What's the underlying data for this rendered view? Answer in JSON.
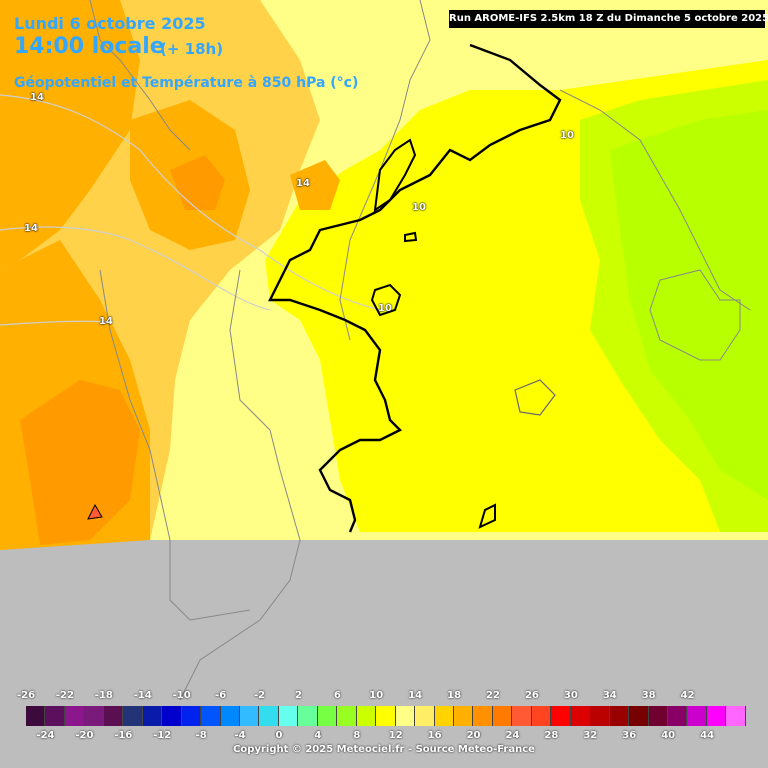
{
  "header": {
    "date": "Lundi 6 octobre 2025",
    "time": "14:00 locale",
    "offset": "(+ 18h)",
    "parameter": "Géopotentiel et Température à 850 hPa (°c)"
  },
  "run_info": "Run AROME-IFS 2.5km 18 Z du Dimanche 5 octobre 2025",
  "contour_labels": [
    "14",
    "14",
    "14",
    "14",
    "10",
    "10",
    "10"
  ],
  "legend": {
    "top_ticks": [
      "-26",
      "-22",
      "-18",
      "-14",
      "-10",
      "-6",
      "-2",
      "2",
      "6",
      "10",
      "14",
      "18",
      "22",
      "26",
      "30",
      "34",
      "38",
      "42"
    ],
    "bottom_ticks": [
      "-24",
      "-20",
      "-16",
      "-12",
      "-8",
      "-4",
      "0",
      "4",
      "8",
      "12",
      "16",
      "20",
      "24",
      "28",
      "32",
      "36",
      "40",
      "44"
    ],
    "colors": [
      "#3d0a3d",
      "#5c0f5c",
      "#8c168c",
      "#7a1a7a",
      "#5a1050",
      "#223377",
      "#0a1aaa",
      "#0000cc",
      "#0022ee",
      "#0055ff",
      "#0088ff",
      "#33bbff",
      "#33ddee",
      "#66ffee",
      "#66ff99",
      "#77ff44",
      "#99ff22",
      "#ccff00",
      "#ffff00",
      "#ffff88",
      "#ffee66",
      "#ffd200",
      "#ffb000",
      "#ff9000",
      "#ff7a00",
      "#ff5a33",
      "#ff4422",
      "#ff0000",
      "#dd0000",
      "#bb0000",
      "#990000",
      "#770000",
      "#700030",
      "#880066",
      "#cc00cc",
      "#ff00ff",
      "#ff66ff"
    ]
  },
  "copyright": "Copyright © 2025 Meteociel.fr - Source Meteo-France",
  "map_colors": {
    "background": "#bdbdbd",
    "warm_dark": "#ff9a00",
    "warm_orange": "#ffb000",
    "warm_light": "#ffd24a",
    "pale_yellow": "#ffff88",
    "pale_yellow2": "#fff27a",
    "yellow": "#ffff00",
    "yellow_green": "#ccff00",
    "green": "#b8ff00"
  }
}
